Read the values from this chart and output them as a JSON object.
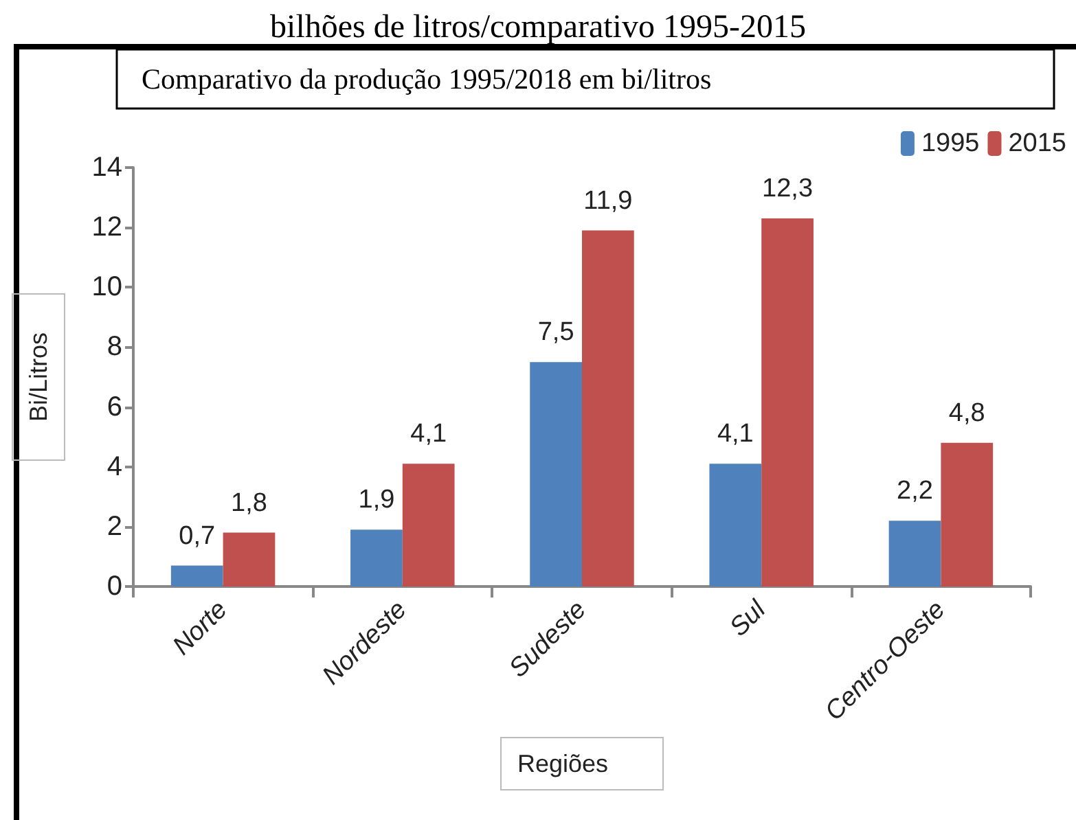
{
  "chart_data": {
    "type": "bar",
    "title": "bilhões de litros/comparativo 1995-2015",
    "subtitle": "Comparativo da produção 1995/2018 em bi/litros",
    "xlabel": "Regiões",
    "ylabel": "Bi/Litros",
    "categories": [
      "Norte",
      "Nordeste",
      "Sudeste",
      "Sul",
      "Centro-Oeste"
    ],
    "series": [
      {
        "name": "1995",
        "color": "#4f81bd",
        "values": [
          0.7,
          1.9,
          7.5,
          4.1,
          2.2
        ],
        "value_labels": [
          "0,7",
          "1,9",
          "7,5",
          "4,1",
          "2,2"
        ]
      },
      {
        "name": "2015",
        "color": "#c0504d",
        "values": [
          1.8,
          4.1,
          11.9,
          12.3,
          4.8
        ],
        "value_labels": [
          "1,8",
          "4,1",
          "11,9",
          "12,3",
          "4,8"
        ]
      }
    ],
    "ylim": [
      0,
      14
    ],
    "yticks": [
      0,
      2,
      4,
      6,
      8,
      10,
      12,
      14
    ],
    "grid": false,
    "legend": "top right"
  }
}
